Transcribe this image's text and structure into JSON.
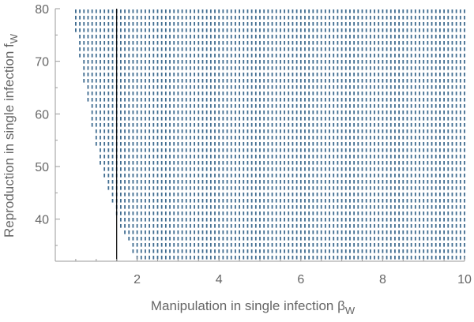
{
  "chart_data": {
    "type": "scatter",
    "xlabel": "Manipulation in single infection β",
    "xlabel_sub": "W",
    "ylabel": "Reproduction in single infection f",
    "ylabel_sub": "W",
    "xlim": [
      0,
      10
    ],
    "ylim": [
      32,
      80
    ],
    "x_ticks": [
      2,
      4,
      6,
      8,
      10
    ],
    "x_tick_labels": [
      "2",
      "4",
      "6",
      "8",
      "10"
    ],
    "y_ticks": [
      40,
      50,
      60,
      70,
      80
    ],
    "y_tick_labels": [
      "40",
      "50",
      "60",
      "70",
      "80"
    ],
    "grid": false,
    "point_color": "#3f6c90",
    "vertical_line": {
      "x": 1.5,
      "y_from": 32,
      "y_to": 80,
      "color": "#000000"
    },
    "region": {
      "description_points": "dense dot grid filling region to the right of boundary",
      "x_step": 0.1,
      "y_step": 1.2,
      "x_max": 10,
      "boundary": [
        {
          "y": 80,
          "x": 0.5
        },
        {
          "y": 75,
          "x": 0.5
        },
        {
          "y": 70,
          "x": 0.6
        },
        {
          "y": 60,
          "x": 0.85
        },
        {
          "y": 55,
          "x": 0.95
        },
        {
          "y": 50,
          "x": 1.1
        },
        {
          "y": 45,
          "x": 1.3
        },
        {
          "y": 40,
          "x": 1.5
        },
        {
          "y": 36,
          "x": 1.75
        },
        {
          "y": 32,
          "x": 2.0
        }
      ]
    }
  }
}
